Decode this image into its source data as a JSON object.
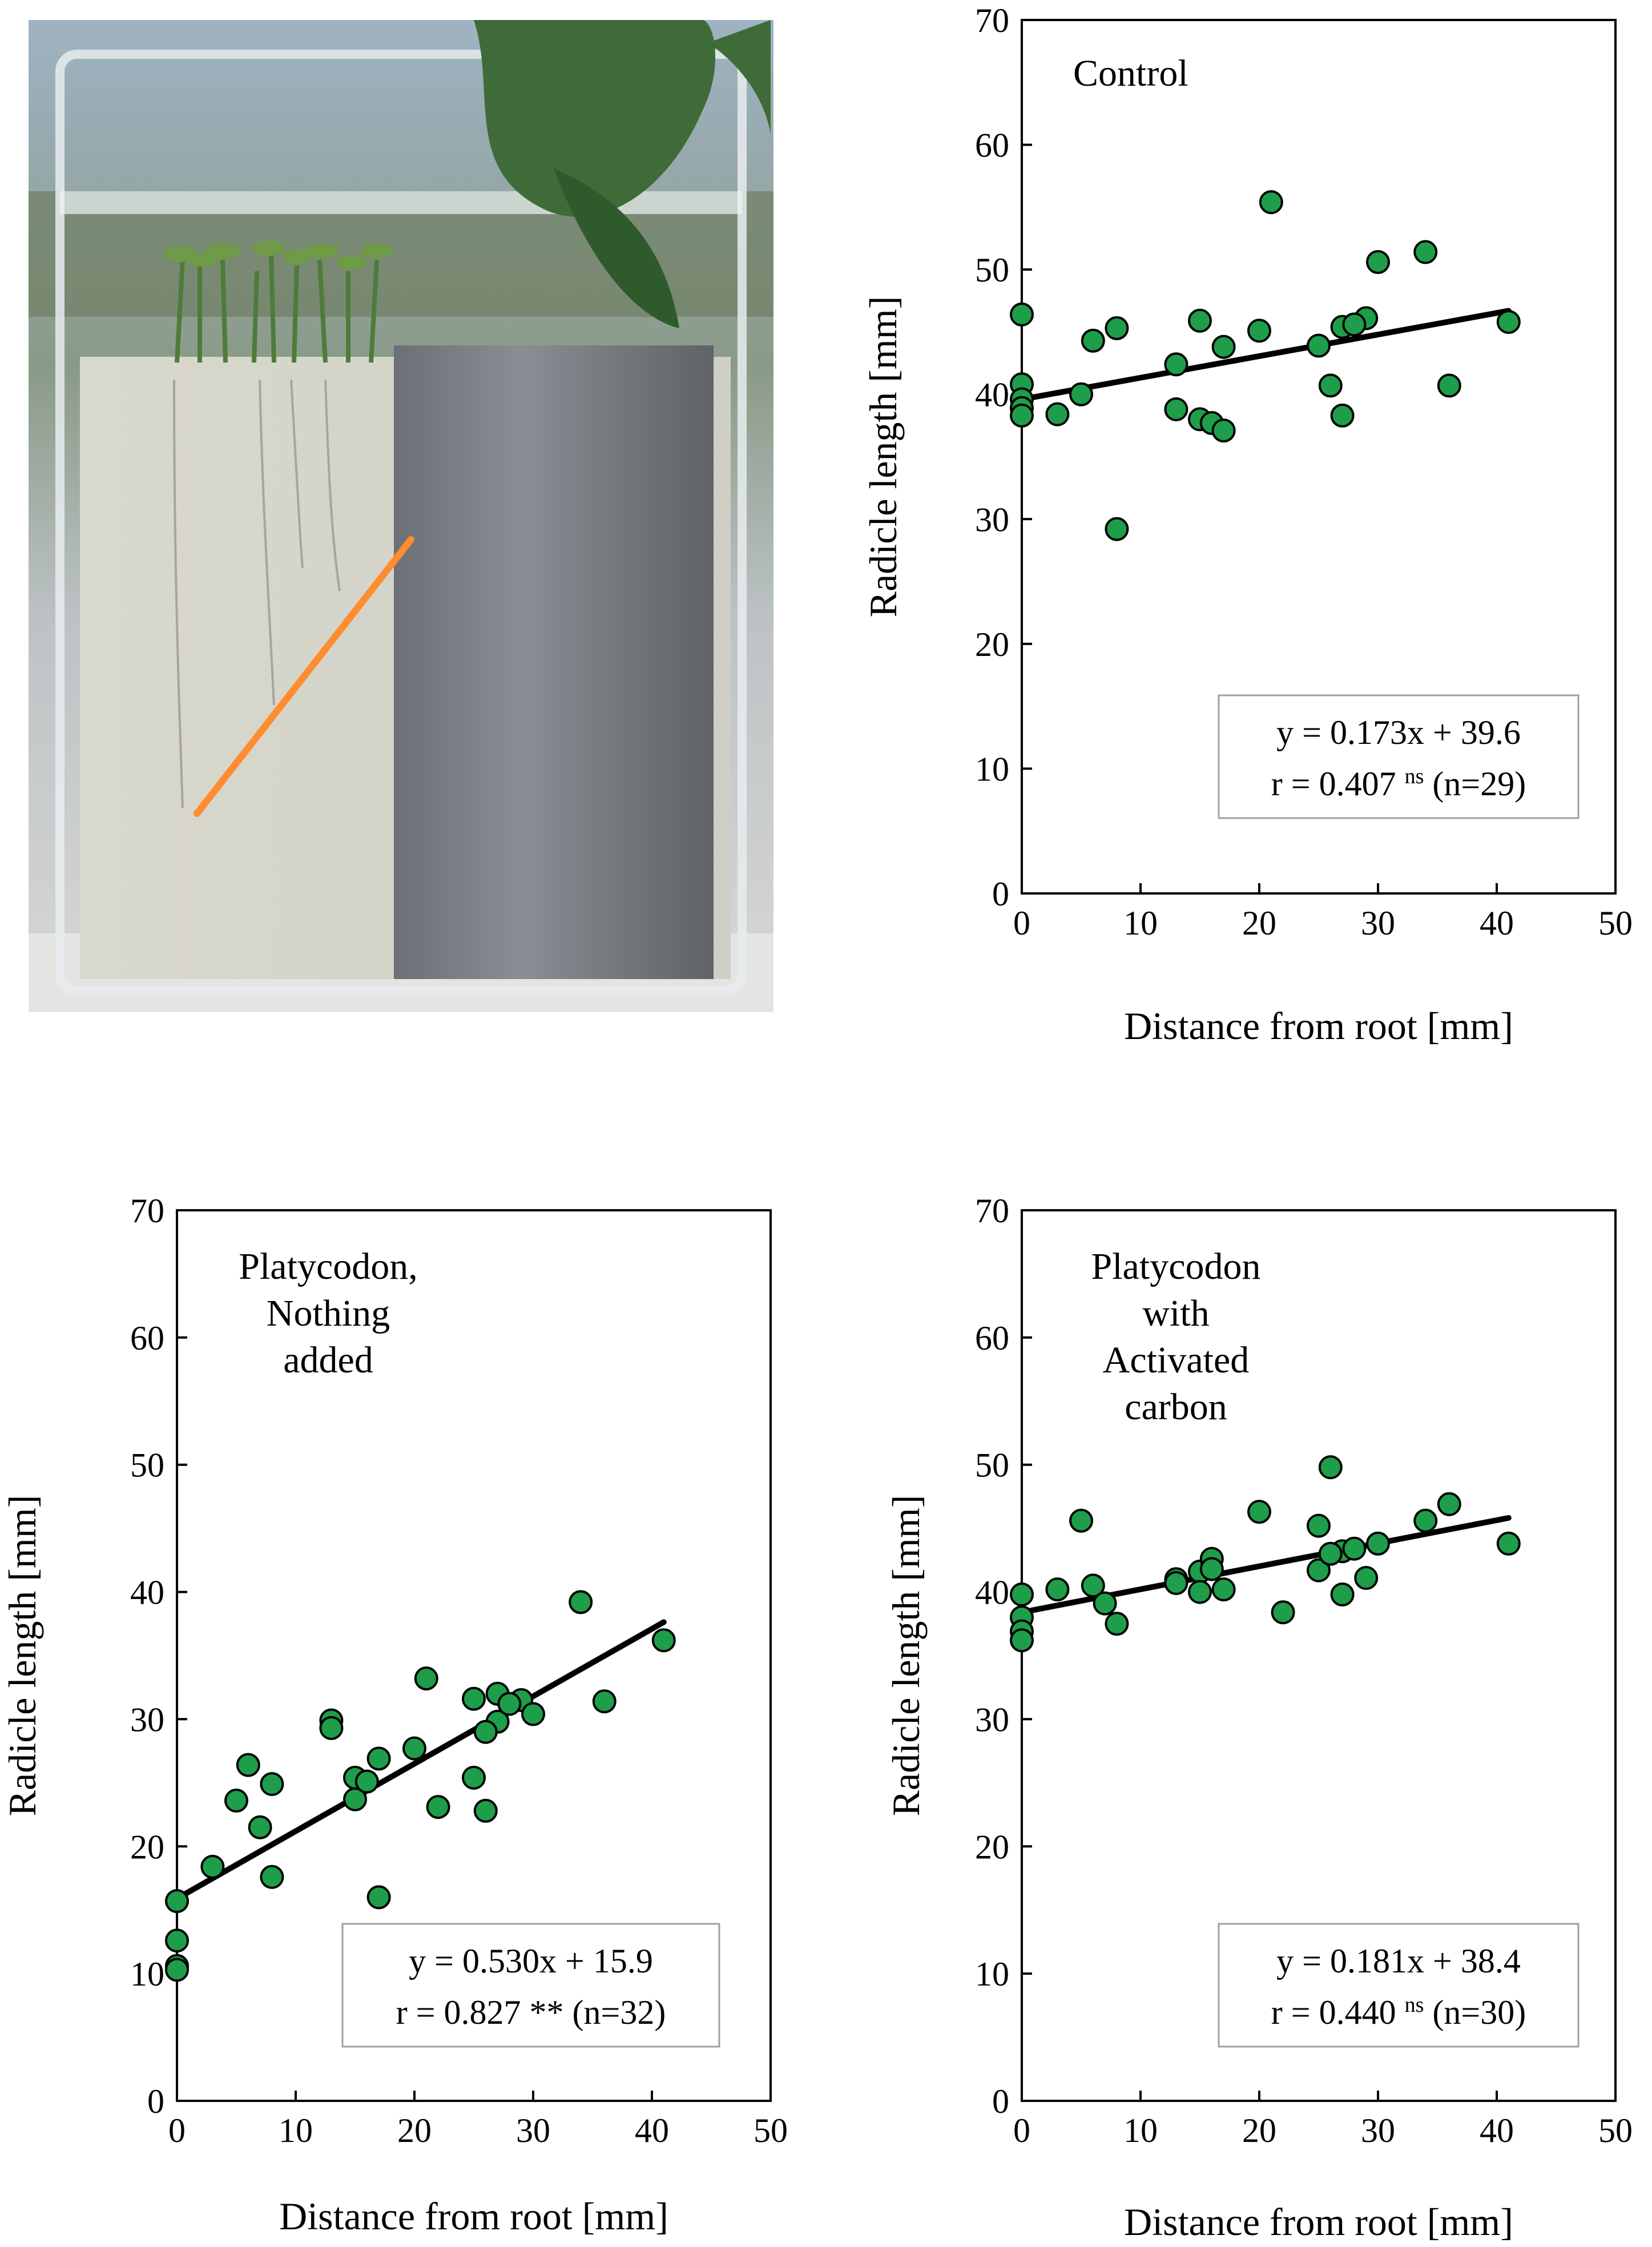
{
  "photo": {
    "description_icon": "rhizobox-photo",
    "line_color": "#ff8c2e"
  },
  "colors": {
    "marker_fill": "#1e9e4a",
    "marker_edge": "#000000",
    "line": "#000000"
  },
  "charts": [
    {
      "id": "control",
      "title": "Control",
      "xlabel": "Distance from root [mm]",
      "ylabel": "Radicle length [mm]",
      "equation": "y = 0.173x + 39.6",
      "stats_prefix": "r = 0.407 ",
      "stats_sup": "ns",
      "stats_suffix": " (n=29)",
      "xticks": [
        "0",
        "10",
        "20",
        "30",
        "40",
        "50"
      ],
      "yticks": [
        "0",
        "10",
        "20",
        "30",
        "40",
        "50",
        "60",
        "70"
      ]
    },
    {
      "id": "nothing-added",
      "title": "Platycodon,\nNothing\nadded",
      "xlabel": "Distance from root [mm]",
      "ylabel": "Radicle length [mm]",
      "equation": "y = 0.530x + 15.9",
      "stats_prefix": "r = 0.827 ** (n=32)",
      "stats_sup": "",
      "stats_suffix": "",
      "xticks": [
        "0",
        "10",
        "20",
        "30",
        "40",
        "50"
      ],
      "yticks": [
        "0",
        "10",
        "20",
        "30",
        "40",
        "50",
        "60",
        "70"
      ]
    },
    {
      "id": "activated-carbon",
      "title": "Platycodon\nwith\nActivated\ncarbon",
      "xlabel": "Distance from root [mm]",
      "ylabel": "Radicle length [mm]",
      "equation": "y = 0.181x + 38.4",
      "stats_prefix": "r = 0.440 ",
      "stats_sup": "ns",
      "stats_suffix": " (n=30)",
      "xticks": [
        "0",
        "10",
        "20",
        "30",
        "40",
        "50"
      ],
      "yticks": [
        "0",
        "10",
        "20",
        "30",
        "40",
        "50",
        "60",
        "70"
      ]
    }
  ],
  "chart_data": [
    {
      "type": "scatter",
      "title": "Control",
      "xlabel": "Distance from root [mm]",
      "ylabel": "Radicle length [mm]",
      "xlim": [
        0,
        50
      ],
      "ylim": [
        0,
        70
      ],
      "fit": {
        "slope": 0.173,
        "intercept": 39.6,
        "x_range": [
          0,
          41
        ]
      },
      "points": [
        {
          "x": 0,
          "y": 46.4
        },
        {
          "x": 0,
          "y": 40.8
        },
        {
          "x": 0,
          "y": 39.6
        },
        {
          "x": 0,
          "y": 38.9
        },
        {
          "x": 0,
          "y": 38.3
        },
        {
          "x": 3,
          "y": 38.4
        },
        {
          "x": 5,
          "y": 40.0
        },
        {
          "x": 6,
          "y": 44.3
        },
        {
          "x": 8,
          "y": 45.3
        },
        {
          "x": 8,
          "y": 29.2
        },
        {
          "x": 13,
          "y": 42.4
        },
        {
          "x": 13,
          "y": 38.8
        },
        {
          "x": 15,
          "y": 45.9
        },
        {
          "x": 15,
          "y": 38.0
        },
        {
          "x": 16,
          "y": 37.7
        },
        {
          "x": 17,
          "y": 43.8
        },
        {
          "x": 17,
          "y": 37.1
        },
        {
          "x": 20,
          "y": 45.1
        },
        {
          "x": 21,
          "y": 55.4
        },
        {
          "x": 25,
          "y": 43.9
        },
        {
          "x": 26,
          "y": 40.7
        },
        {
          "x": 27,
          "y": 45.4
        },
        {
          "x": 27,
          "y": 38.3
        },
        {
          "x": 29,
          "y": 46.1
        },
        {
          "x": 30,
          "y": 50.6
        },
        {
          "x": 34,
          "y": 51.4
        },
        {
          "x": 36,
          "y": 40.7
        },
        {
          "x": 41,
          "y": 45.8
        },
        {
          "x": 28,
          "y": 45.6
        }
      ]
    },
    {
      "type": "scatter",
      "title": "Platycodon, Nothing added",
      "xlabel": "Distance from root [mm]",
      "ylabel": "Radicle length [mm]",
      "xlim": [
        0,
        50
      ],
      "ylim": [
        0,
        70
      ],
      "fit": {
        "slope": 0.53,
        "intercept": 15.9,
        "x_range": [
          0,
          41
        ]
      },
      "points": [
        {
          "x": 0,
          "y": 15.7
        },
        {
          "x": 0,
          "y": 12.6
        },
        {
          "x": 0,
          "y": 10.6
        },
        {
          "x": 0,
          "y": 10.3
        },
        {
          "x": 3,
          "y": 18.4
        },
        {
          "x": 5,
          "y": 23.6
        },
        {
          "x": 6,
          "y": 26.4
        },
        {
          "x": 7,
          "y": 21.5
        },
        {
          "x": 8,
          "y": 24.9
        },
        {
          "x": 8,
          "y": 17.6
        },
        {
          "x": 13,
          "y": 29.9
        },
        {
          "x": 13,
          "y": 29.3
        },
        {
          "x": 15,
          "y": 25.4
        },
        {
          "x": 15,
          "y": 23.7
        },
        {
          "x": 16,
          "y": 25.1
        },
        {
          "x": 17,
          "y": 26.9
        },
        {
          "x": 17,
          "y": 16.0
        },
        {
          "x": 20,
          "y": 27.7
        },
        {
          "x": 21,
          "y": 33.2
        },
        {
          "x": 22,
          "y": 23.1
        },
        {
          "x": 25,
          "y": 31.6
        },
        {
          "x": 25,
          "y": 25.4
        },
        {
          "x": 26,
          "y": 22.8
        },
        {
          "x": 27,
          "y": 32.0
        },
        {
          "x": 27,
          "y": 29.8
        },
        {
          "x": 29,
          "y": 31.5
        },
        {
          "x": 30,
          "y": 30.4
        },
        {
          "x": 34,
          "y": 39.2
        },
        {
          "x": 36,
          "y": 31.4
        },
        {
          "x": 41,
          "y": 36.2
        },
        {
          "x": 28,
          "y": 31.2
        },
        {
          "x": 26,
          "y": 29.0
        }
      ]
    },
    {
      "type": "scatter",
      "title": "Platycodon with Activated carbon",
      "xlabel": "Distance from root [mm]",
      "ylabel": "Radicle length [mm]",
      "xlim": [
        0,
        50
      ],
      "ylim": [
        0,
        70
      ],
      "fit": {
        "slope": 0.181,
        "intercept": 38.4,
        "x_range": [
          0,
          41
        ]
      },
      "points": [
        {
          "x": 0,
          "y": 39.8
        },
        {
          "x": 0,
          "y": 38.0
        },
        {
          "x": 0,
          "y": 36.9
        },
        {
          "x": 0,
          "y": 36.2
        },
        {
          "x": 3,
          "y": 40.2
        },
        {
          "x": 5,
          "y": 45.6
        },
        {
          "x": 6,
          "y": 40.5
        },
        {
          "x": 7,
          "y": 39.1
        },
        {
          "x": 8,
          "y": 37.5
        },
        {
          "x": 13,
          "y": 41.0
        },
        {
          "x": 13,
          "y": 40.7
        },
        {
          "x": 15,
          "y": 41.6
        },
        {
          "x": 15,
          "y": 40.0
        },
        {
          "x": 16,
          "y": 42.6
        },
        {
          "x": 17,
          "y": 40.2
        },
        {
          "x": 20,
          "y": 46.3
        },
        {
          "x": 22,
          "y": 38.4
        },
        {
          "x": 25,
          "y": 45.2
        },
        {
          "x": 25,
          "y": 41.7
        },
        {
          "x": 26,
          "y": 49.8
        },
        {
          "x": 27,
          "y": 43.2
        },
        {
          "x": 27,
          "y": 39.8
        },
        {
          "x": 29,
          "y": 41.1
        },
        {
          "x": 30,
          "y": 43.8
        },
        {
          "x": 34,
          "y": 45.6
        },
        {
          "x": 36,
          "y": 46.9
        },
        {
          "x": 41,
          "y": 43.8
        },
        {
          "x": 28,
          "y": 43.4
        },
        {
          "x": 16,
          "y": 41.8
        },
        {
          "x": 26,
          "y": 43.0
        }
      ]
    }
  ]
}
